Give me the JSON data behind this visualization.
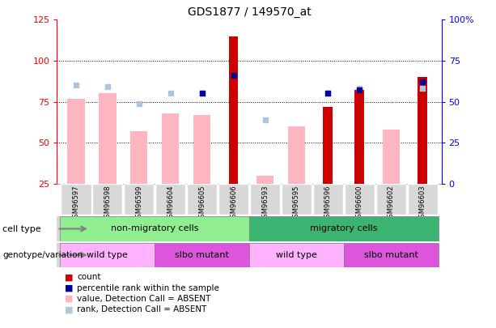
{
  "title": "GDS1877 / 149570_at",
  "samples": [
    "GSM96597",
    "GSM96598",
    "GSM96599",
    "GSM96604",
    "GSM96605",
    "GSM96606",
    "GSM96593",
    "GSM96595",
    "GSM96596",
    "GSM96600",
    "GSM96602",
    "GSM96603"
  ],
  "count_values": [
    null,
    null,
    null,
    null,
    null,
    115,
    null,
    null,
    72,
    82,
    null,
    90
  ],
  "value_absent": [
    77,
    80,
    57,
    68,
    67,
    null,
    30,
    60,
    null,
    null,
    58,
    null
  ],
  "rank_absent": [
    85,
    84,
    74,
    80,
    80,
    null,
    64,
    null,
    80,
    83,
    null,
    83
  ],
  "percentile_rank": [
    null,
    null,
    null,
    null,
    80,
    91,
    null,
    null,
    80,
    82,
    null,
    87
  ],
  "left_ylim": [
    25,
    125
  ],
  "right_ylim": [
    0,
    100
  ],
  "right_yticks": [
    0,
    25,
    50,
    75,
    100
  ],
  "right_yticklabels": [
    "0",
    "25",
    "50",
    "75",
    "100%"
  ],
  "left_yticks": [
    25,
    50,
    75,
    100,
    125
  ],
  "left_yticklabels": [
    "25",
    "50",
    "75",
    "100",
    "125"
  ],
  "dotted_lines": [
    100,
    75,
    50
  ],
  "cell_type_groups": [
    {
      "label": "non-migratory cells",
      "start": 0,
      "end": 6,
      "color": "#90EE90"
    },
    {
      "label": "migratory cells",
      "start": 6,
      "end": 12,
      "color": "#3CB371"
    }
  ],
  "genotype_groups": [
    {
      "label": "wild type",
      "start": 0,
      "end": 3,
      "color": "#FFB3FF"
    },
    {
      "label": "slbo mutant",
      "start": 3,
      "end": 6,
      "color": "#DD55DD"
    },
    {
      "label": "wild type",
      "start": 6,
      "end": 9,
      "color": "#FFB3FF"
    },
    {
      "label": "slbo mutant",
      "start": 9,
      "end": 12,
      "color": "#DD55DD"
    }
  ],
  "color_count": "#CC0000",
  "color_percentile": "#000099",
  "color_value_absent": "#FFB6C1",
  "color_rank_absent": "#B0C4DE",
  "bar_width": 0.55
}
